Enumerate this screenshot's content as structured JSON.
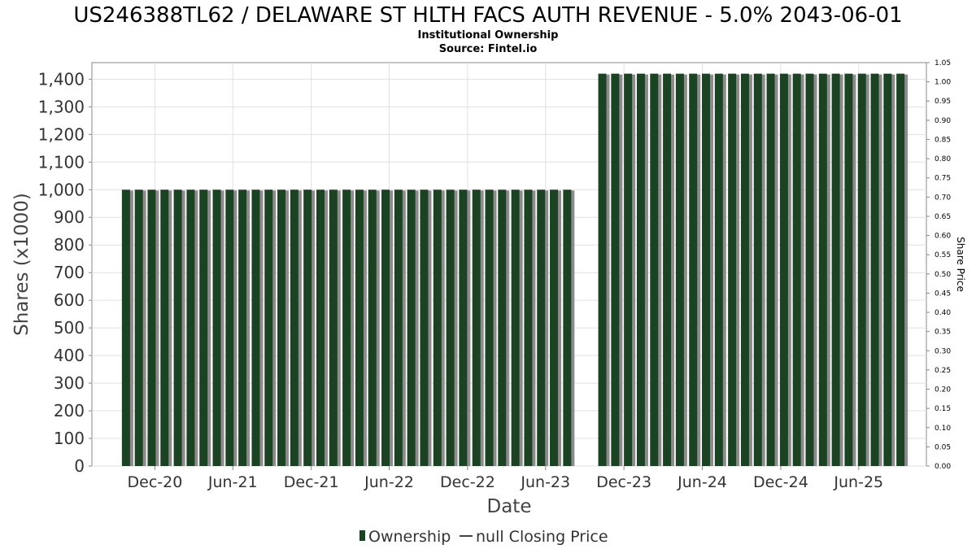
{
  "chart_data": {
    "type": "bar",
    "title": "US246388TL62 / DELAWARE ST HLTH FACS AUTH REVENUE - 5.0% 2043-06-01",
    "subtitle": "Institutional Ownership",
    "source": "Source: Fintel.io",
    "xlabel": "Date",
    "ylabel": "Shares (x1000)",
    "y2label": "Share Price",
    "ylim": [
      0,
      1460
    ],
    "y2lim": [
      0,
      1.05
    ],
    "yticks": [
      "0",
      "100",
      "200",
      "300",
      "400",
      "500",
      "600",
      "700",
      "800",
      "900",
      "1,000",
      "1,100",
      "1,200",
      "1,300",
      "1,400"
    ],
    "y2ticks": [
      "0.00",
      "0.05",
      "0.10",
      "0.15",
      "0.20",
      "0.25",
      "0.30",
      "0.35",
      "0.40",
      "0.45",
      "0.50",
      "0.55",
      "0.60",
      "0.65",
      "0.70",
      "0.75",
      "0.80",
      "0.85",
      "0.90",
      "0.95",
      "1.00",
      "1.05"
    ],
    "xlim": [
      "2020-07-07",
      "2025-11-06"
    ],
    "xticks": [
      {
        "label": "Dec-20",
        "date": "2020-12-01"
      },
      {
        "label": "Jun-21",
        "date": "2021-06-01"
      },
      {
        "label": "Dec-21",
        "date": "2021-12-01"
      },
      {
        "label": "Jun-22",
        "date": "2022-06-01"
      },
      {
        "label": "Dec-22",
        "date": "2022-12-01"
      },
      {
        "label": "Jun-23",
        "date": "2023-06-01"
      },
      {
        "label": "Dec-23",
        "date": "2023-12-01"
      },
      {
        "label": "Jun-24",
        "date": "2024-06-01"
      },
      {
        "label": "Dec-24",
        "date": "2024-12-01"
      },
      {
        "label": "Jun-25",
        "date": "2025-06-01"
      }
    ],
    "grid": true,
    "legend_position": "bottom",
    "colors": {
      "ownership": "#1a4223",
      "bar_shadow": "#8c8c8c",
      "grid": "#e0e0e0",
      "axis": "#888888"
    },
    "series": [
      {
        "name": "Ownership",
        "bar_groups": [
          {
            "start": "2020-09-15",
            "count": 35,
            "step_days": 30.3,
            "value": 1000
          },
          {
            "start": "2023-10-02",
            "count": 24,
            "step_days": 30.3,
            "value": 1420
          }
        ]
      }
    ],
    "legend": [
      {
        "label": "Ownership",
        "marker": "bar"
      },
      {
        "label": "null Closing Price",
        "marker": "line"
      }
    ]
  }
}
